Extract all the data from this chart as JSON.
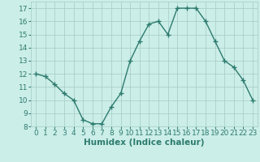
{
  "x": [
    0,
    1,
    2,
    3,
    4,
    5,
    6,
    7,
    8,
    9,
    10,
    11,
    12,
    13,
    14,
    15,
    16,
    17,
    18,
    19,
    20,
    21,
    22,
    23
  ],
  "y": [
    12,
    11.8,
    11.2,
    10.5,
    10,
    8.5,
    8.2,
    8.2,
    9.5,
    10.5,
    13,
    14.5,
    15.8,
    16,
    15,
    17,
    17,
    17,
    16,
    14.5,
    13,
    12.5,
    11.5,
    10
  ],
  "line_color": "#2d7b6f",
  "marker": "+",
  "bg_color": "#cceee8",
  "grid_color": "#aacfca",
  "xlabel": "Humidex (Indice chaleur)",
  "ylim": [
    8,
    17.5
  ],
  "xlim": [
    -0.5,
    23.5
  ],
  "yticks": [
    8,
    9,
    10,
    11,
    12,
    13,
    14,
    15,
    16,
    17
  ],
  "xticks": [
    0,
    1,
    2,
    3,
    4,
    5,
    6,
    7,
    8,
    9,
    10,
    11,
    12,
    13,
    14,
    15,
    16,
    17,
    18,
    19,
    20,
    21,
    22,
    23
  ],
  "xlabel_fontsize": 7.5,
  "tick_fontsize": 6.5,
  "line_width": 1.0,
  "marker_size": 4
}
